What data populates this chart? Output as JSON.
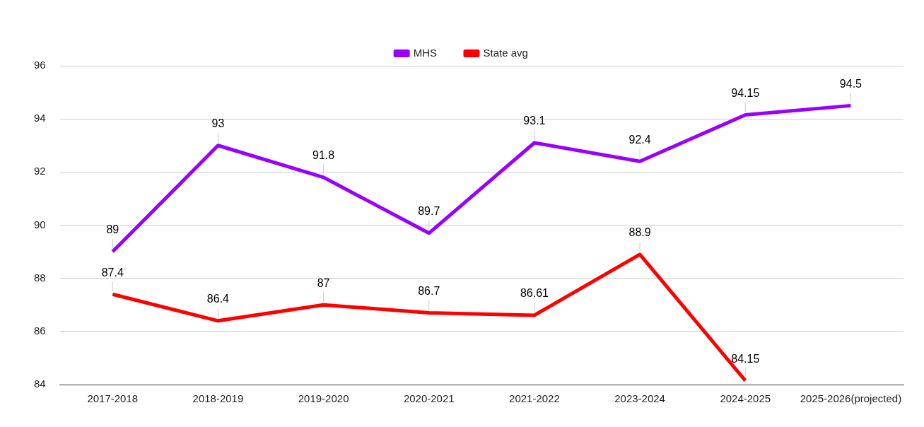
{
  "chart_data": {
    "type": "line",
    "categories": [
      "2017-2018",
      "2018-2019",
      "2019-2020",
      "2020-2021",
      "2021-2022",
      "2023-2024",
      "2024-2025",
      "2025-2026(projected)"
    ],
    "series": [
      {
        "name": "MHS",
        "color": "#9900ff",
        "values": [
          89,
          93,
          91.8,
          89.7,
          93.1,
          92.4,
          94.15,
          94.5
        ]
      },
      {
        "name": "State avg",
        "color": "#ff0000",
        "values": [
          87.4,
          86.4,
          87,
          86.7,
          86.61,
          88.9,
          84.15,
          null
        ]
      }
    ],
    "ylim": [
      84,
      96
    ],
    "yticks": [
      84,
      86,
      88,
      90,
      92,
      94,
      96
    ],
    "grid": "y",
    "legend": "top",
    "data_labels": true
  }
}
